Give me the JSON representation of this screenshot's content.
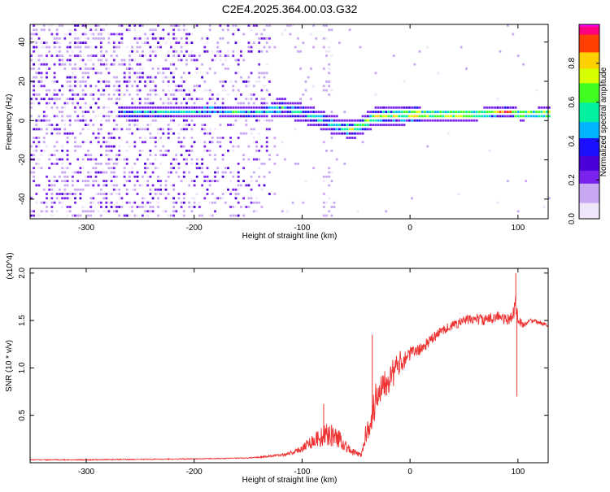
{
  "figure_title": "C2E4.2025.364.00.03.G32",
  "chart_data": [
    {
      "type": "heatmap",
      "name": "spectrogram",
      "title": "C2E4.2025.364.00.03.G32",
      "xlabel": "Height of straight line (km)",
      "ylabel": "Frequency (Hz)",
      "xlim": [
        -352,
        128
      ],
      "ylim": [
        -50,
        49
      ],
      "xticks": [
        -300,
        -200,
        -100,
        0,
        100
      ],
      "xtick_labels": [
        "-300",
        "-200",
        "-100",
        "0",
        "100"
      ],
      "yticks": [
        -40,
        -20,
        0,
        20,
        40
      ],
      "ytick_labels": [
        "-40",
        "-20",
        "0",
        "20",
        "40"
      ],
      "colorbar": {
        "label": "Normalized spectral amplitude",
        "range": [
          0,
          1
        ],
        "ticks": [
          0.0,
          0.2,
          0.4,
          0.6,
          0.8
        ],
        "tick_labels": [
          "0.0",
          "0.2",
          "0.4",
          "0.6",
          "0.8"
        ],
        "colormap": [
          "#ffffff",
          "#d8c4f4",
          "#8a3ef0",
          "#5a00e6",
          "#0000ff",
          "#00c8ff",
          "#00ff7f",
          "#aaff00",
          "#ffff00",
          "#ff8000",
          "#ff0000",
          "#ff00ff"
        ]
      },
      "ridge": {
        "description_points_x": [
          -270,
          -220,
          -180,
          -150,
          -120,
          -100,
          -80,
          -65,
          -55,
          -45,
          -35,
          -25,
          -10,
          0,
          20,
          60,
          80,
          90,
          100,
          128
        ],
        "description_points_y": [
          2,
          2.5,
          4,
          2,
          5,
          2,
          -2,
          -5,
          -6,
          -4,
          0,
          1,
          1,
          1.5,
          1.5,
          1.5,
          2.5,
          3,
          1.5,
          2
        ]
      }
    },
    {
      "type": "line",
      "name": "snr",
      "xlabel": "Height of straight line (km)",
      "ylabel": "SNR (10 * v/v)",
      "y_multiplier": "(x10^4)",
      "xlim": [
        -352,
        128
      ],
      "ylim": [
        0,
        2.05
      ],
      "xticks": [
        -300,
        -200,
        -100,
        0,
        100
      ],
      "xtick_labels": [
        "-300",
        "-200",
        "-100",
        "0",
        "100"
      ],
      "yticks": [
        0.5,
        1.0,
        1.5,
        2.0
      ],
      "ytick_labels": [
        "0.5",
        "1.0",
        "1.5",
        "2.0"
      ],
      "color": "#ee3333",
      "envelope_x": [
        -352,
        -300,
        -200,
        -150,
        -120,
        -105,
        -95,
        -85,
        -75,
        -65,
        -55,
        -45,
        -40,
        -35,
        -30,
        -25,
        -20,
        -15,
        -10,
        -5,
        0,
        10,
        20,
        30,
        40,
        50,
        60,
        70,
        80,
        90,
        95,
        98,
        100,
        105,
        110,
        120,
        128
      ],
      "envelope_y": [
        0.03,
        0.03,
        0.04,
        0.05,
        0.08,
        0.12,
        0.2,
        0.26,
        0.3,
        0.25,
        0.12,
        0.08,
        0.35,
        0.5,
        0.75,
        0.85,
        0.9,
        0.95,
        1.05,
        1.1,
        1.15,
        1.2,
        1.3,
        1.4,
        1.45,
        1.5,
        1.52,
        1.5,
        1.55,
        1.5,
        1.55,
        1.7,
        1.5,
        1.45,
        1.5,
        1.48,
        1.45
      ],
      "noise_y": [
        0.01,
        0.01,
        0.01,
        0.01,
        0.03,
        0.06,
        0.12,
        0.2,
        0.25,
        0.2,
        0.08,
        0.05,
        0.25,
        0.35,
        0.4,
        0.35,
        0.35,
        0.3,
        0.25,
        0.2,
        0.15,
        0.12,
        0.12,
        0.1,
        0.1,
        0.1,
        0.12,
        0.12,
        0.12,
        0.12,
        0.12,
        0.3,
        0.12,
        0.06,
        0.05,
        0.04,
        0.04
      ],
      "spikes": [
        {
          "x": -80,
          "y": 0.62
        },
        {
          "x": -35,
          "y": 1.35
        },
        {
          "x": 98,
          "y": 2.0
        },
        {
          "x": 99,
          "y": 0.7
        }
      ]
    }
  ]
}
